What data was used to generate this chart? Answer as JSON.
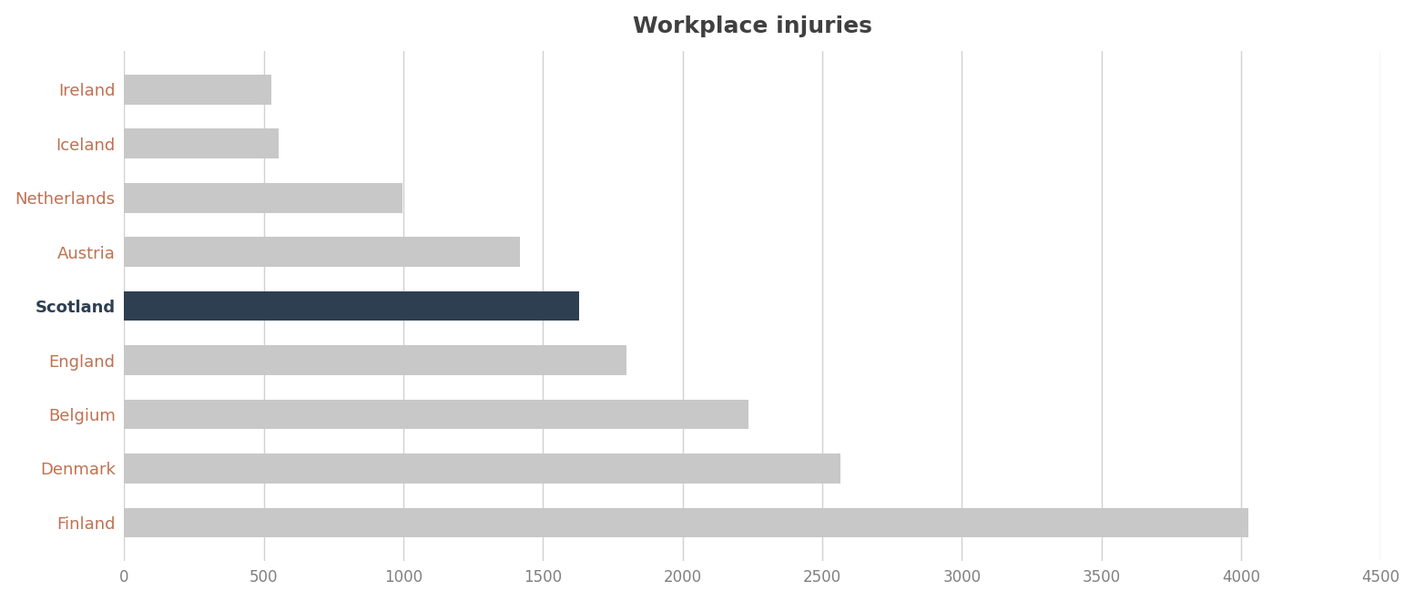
{
  "title": "Workplace injuries",
  "categories": [
    "Ireland",
    "Iceland",
    "Netherlands",
    "Austria",
    "Scotland",
    "England",
    "Belgium",
    "Denmark",
    "Finland"
  ],
  "values": [
    526.3,
    554.1,
    997.1,
    1416.5,
    1630,
    1800,
    2234.9,
    2565.2,
    4025.1
  ],
  "bar_colors": [
    "#c8c8c8",
    "#c8c8c8",
    "#c8c8c8",
    "#c8c8c8",
    "#2e3f52",
    "#c8c8c8",
    "#c8c8c8",
    "#c8c8c8",
    "#c8c8c8"
  ],
  "scotland_label_color": "#2e3f52",
  "xlim": [
    0,
    4500
  ],
  "xticks": [
    0,
    500,
    1000,
    1500,
    2000,
    2500,
    3000,
    3500,
    4000,
    4500
  ],
  "background_color": "#ffffff",
  "grid_color": "#ffffff",
  "plot_bg_color": "#ffffff",
  "title_fontsize": 18,
  "label_fontsize": 13,
  "tick_fontsize": 12,
  "label_color": "#c07050",
  "tick_color": "#808080",
  "title_color": "#404040",
  "bar_height": 0.55
}
